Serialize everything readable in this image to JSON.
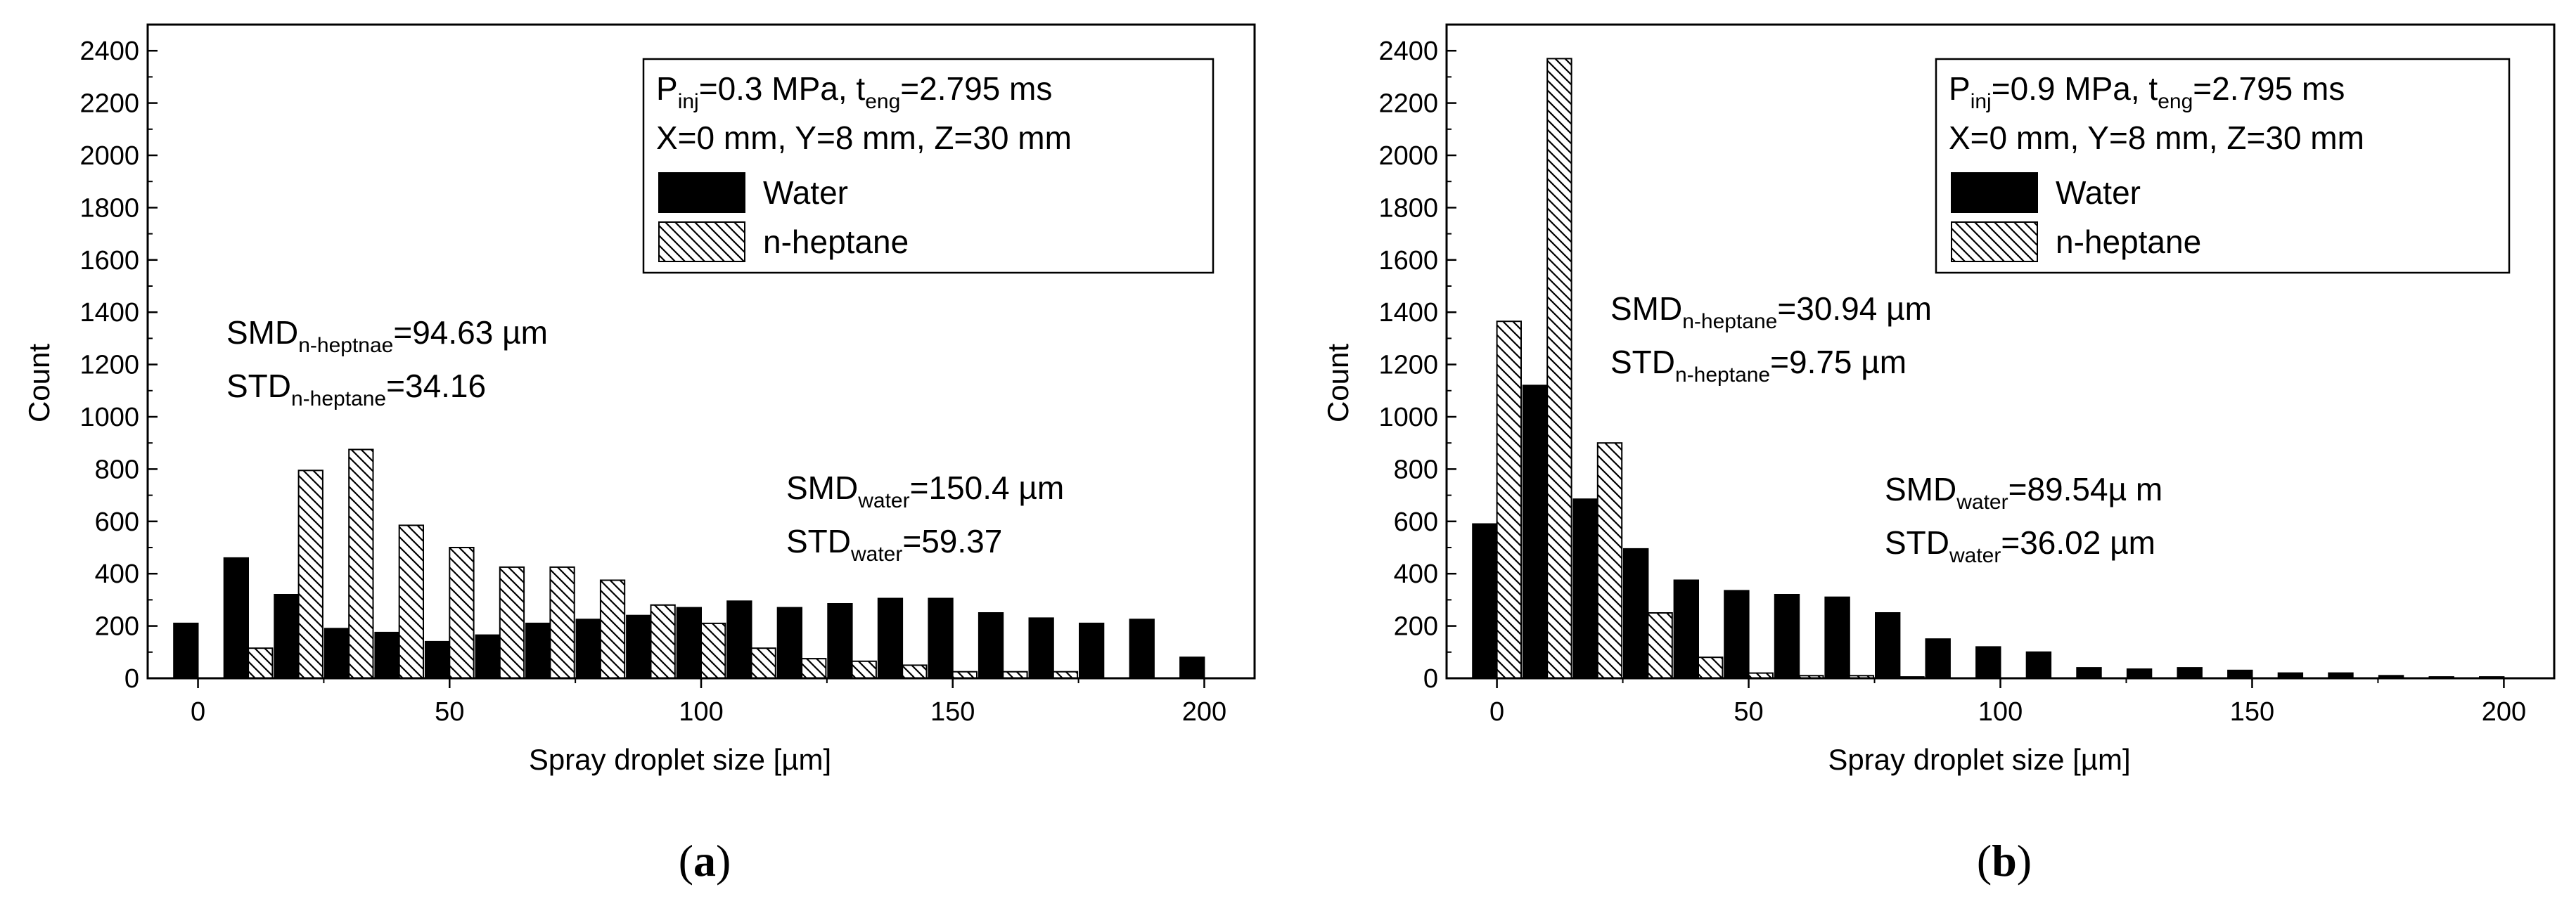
{
  "chart_data": [
    {
      "type": "bar",
      "panel_label": {
        "open": "(",
        "letter": "a",
        "close": ")"
      },
      "xlabel": "Spray droplet size [µm]",
      "ylabel": "Count",
      "xlim": [
        -10,
        210
      ],
      "ylim": [
        0,
        2500
      ],
      "x_ticks": [
        0,
        50,
        100,
        150,
        200
      ],
      "y_ticks": [
        0,
        200,
        400,
        600,
        800,
        1000,
        1200,
        1400,
        1600,
        1800,
        2000,
        2200,
        2400
      ],
      "bin_width": 10,
      "legend": {
        "line1": {
          "main": "P",
          "sub": "inj",
          "mid": "=0.3 MPa, t",
          "sub2": "eng",
          "end": "=2.795 ms"
        },
        "line2": "X=0 mm, Y=8 mm, Z=30 mm",
        "entries": [
          "Water",
          "n-heptane"
        ]
      },
      "series": [
        {
          "name": "Water",
          "pattern": "solid",
          "x": [
            0,
            10,
            20,
            30,
            40,
            50,
            60,
            70,
            80,
            90,
            100,
            110,
            120,
            130,
            140,
            150,
            160,
            170,
            180,
            190,
            200
          ],
          "values": [
            210,
            460,
            320,
            190,
            175,
            140,
            165,
            210,
            225,
            240,
            270,
            295,
            270,
            285,
            305,
            305,
            250,
            230,
            210,
            225,
            80
          ]
        },
        {
          "name": "n-heptane",
          "pattern": "hatch",
          "x": [
            0,
            10,
            20,
            30,
            40,
            50,
            60,
            70,
            80,
            90,
            100,
            110,
            120,
            130,
            140,
            150,
            160,
            170,
            180,
            190,
            200
          ],
          "values": [
            0,
            115,
            795,
            875,
            585,
            500,
            425,
            425,
            375,
            280,
            210,
            115,
            75,
            65,
            50,
            25,
            25,
            25,
            0,
            0,
            0
          ]
        }
      ],
      "annotations": [
        {
          "id": "smd-heptane",
          "main": "SMD",
          "sub": "n-heptnae",
          "value": "=94.63 µm"
        },
        {
          "id": "std-heptane",
          "main": "STD",
          "sub": "n-heptane",
          "value": "=34.16"
        },
        {
          "id": "smd-water",
          "main": "SMD",
          "sub": "water",
          "value": "=150.4 µm"
        },
        {
          "id": "std-water",
          "main": "STD",
          "sub": "water",
          "value": "=59.37"
        }
      ]
    },
    {
      "type": "bar",
      "panel_label": {
        "open": "(",
        "letter": "b",
        "close": ")"
      },
      "xlabel": "Spray droplet size [µm]",
      "ylabel": "Count",
      "xlim": [
        -10,
        210
      ],
      "ylim": [
        0,
        2500
      ],
      "x_ticks": [
        0,
        50,
        100,
        150,
        200
      ],
      "y_ticks": [
        0,
        200,
        400,
        600,
        800,
        1000,
        1200,
        1400,
        1600,
        1800,
        2000,
        2200,
        2400
      ],
      "bin_width": 10,
      "legend": {
        "line1": {
          "main": "P",
          "sub": "inj",
          "mid": "=0.9 MPa, t",
          "sub2": "eng",
          "end": "=2.795 ms"
        },
        "line2": "X=0 mm, Y=8 mm, Z=30 mm",
        "entries": [
          "Water",
          "n-heptane"
        ]
      },
      "series": [
        {
          "name": "Water",
          "pattern": "solid",
          "x": [
            0,
            10,
            20,
            30,
            40,
            50,
            60,
            70,
            80,
            90,
            100,
            110,
            120,
            130,
            140,
            150,
            160,
            170,
            180,
            190,
            200
          ],
          "values": [
            590,
            1120,
            685,
            495,
            375,
            335,
            320,
            310,
            250,
            150,
            120,
            100,
            40,
            35,
            40,
            30,
            20,
            20,
            10,
            5,
            5
          ]
        },
        {
          "name": "n-heptane",
          "pattern": "hatch",
          "x": [
            0,
            10,
            20,
            30,
            40,
            50,
            60,
            70,
            80,
            90,
            100,
            110,
            120,
            130,
            140,
            150,
            160,
            170,
            180,
            190,
            200
          ],
          "values": [
            1365,
            2370,
            900,
            250,
            80,
            20,
            10,
            10,
            5,
            0,
            0,
            0,
            0,
            0,
            0,
            0,
            0,
            0,
            0,
            0,
            0
          ]
        }
      ],
      "annotations": [
        {
          "id": "smd-heptane",
          "main": "SMD",
          "sub": "n-heptane",
          "value": "=30.94 µm"
        },
        {
          "id": "std-heptane",
          "main": "STD",
          "sub": "n-heptane",
          "value": "=9.75 µm"
        },
        {
          "id": "smd-water",
          "main": "SMD",
          "sub": "water",
          "value": "=89.54µ m"
        },
        {
          "id": "std-water",
          "main": "STD",
          "sub": "water",
          "value": "=36.02 µm"
        }
      ]
    }
  ]
}
